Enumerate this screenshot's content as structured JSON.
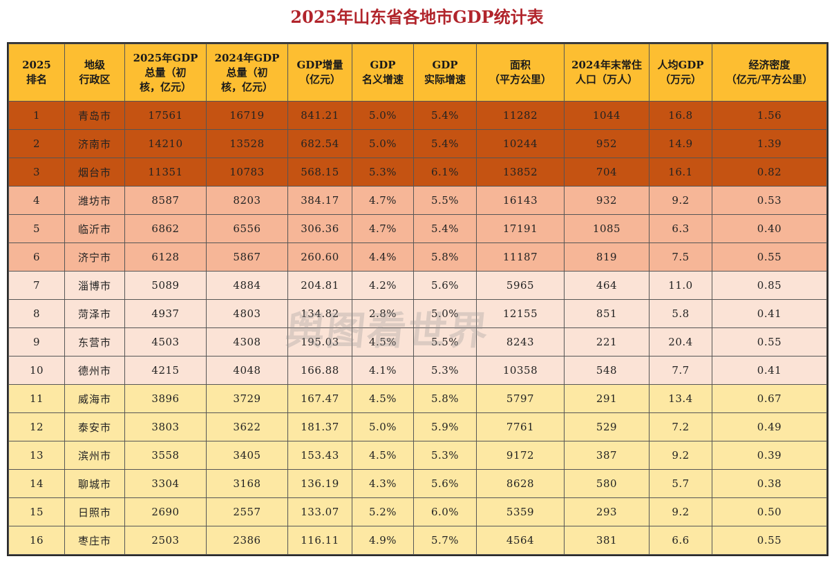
{
  "title": "2025年山东省各地市GDP统计表",
  "watermark": "舆图看世界",
  "headers": [
    [
      "2025",
      "排名"
    ],
    [
      "地级",
      "行政区"
    ],
    [
      "2025年GDP",
      "总量（初",
      "核，亿元）"
    ],
    [
      "2024年GDP",
      "总量（初",
      "核，亿元）"
    ],
    [
      "GDP增量",
      "（亿元）"
    ],
    [
      "GDP",
      "名义增速"
    ],
    [
      "GDP",
      "实际增速"
    ],
    [
      "面积",
      "（平方公里）"
    ],
    [
      "2024年末常住",
      "人口（万人）"
    ],
    [
      "人均GDP",
      "（万元）"
    ],
    [
      "经济密度",
      "（亿元/平方公里）"
    ]
  ],
  "tier_colors": [
    "#c55312",
    "#f6b697",
    "#fbe3d6",
    "#fde8a3"
  ],
  "rows": [
    {
      "tier": 1,
      "cells": [
        "1",
        "青岛市",
        "17561",
        "16719",
        "841.21",
        "5.0%",
        "5.4%",
        "11282",
        "1044",
        "16.8",
        "1.56"
      ]
    },
    {
      "tier": 1,
      "cells": [
        "2",
        "济南市",
        "14210",
        "13528",
        "682.54",
        "5.0%",
        "5.4%",
        "10244",
        "952",
        "14.9",
        "1.39"
      ]
    },
    {
      "tier": 1,
      "cells": [
        "3",
        "烟台市",
        "11351",
        "10783",
        "568.15",
        "5.3%",
        "6.1%",
        "13852",
        "704",
        "16.1",
        "0.82"
      ]
    },
    {
      "tier": 2,
      "cells": [
        "4",
        "潍坊市",
        "8587",
        "8203",
        "384.17",
        "4.7%",
        "5.5%",
        "16143",
        "932",
        "9.2",
        "0.53"
      ]
    },
    {
      "tier": 2,
      "cells": [
        "5",
        "临沂市",
        "6862",
        "6556",
        "306.36",
        "4.7%",
        "5.4%",
        "17191",
        "1085",
        "6.3",
        "0.40"
      ]
    },
    {
      "tier": 2,
      "cells": [
        "6",
        "济宁市",
        "6128",
        "5867",
        "260.60",
        "4.4%",
        "5.8%",
        "11187",
        "819",
        "7.5",
        "0.55"
      ]
    },
    {
      "tier": 3,
      "cells": [
        "7",
        "淄博市",
        "5089",
        "4884",
        "204.81",
        "4.2%",
        "5.6%",
        "5965",
        "464",
        "11.0",
        "0.85"
      ]
    },
    {
      "tier": 3,
      "cells": [
        "8",
        "菏泽市",
        "4937",
        "4803",
        "134.82",
        "2.8%",
        "5.0%",
        "12155",
        "851",
        "5.8",
        "0.41"
      ]
    },
    {
      "tier": 3,
      "cells": [
        "9",
        "东营市",
        "4503",
        "4308",
        "195.03",
        "4.5%",
        "5.5%",
        "8243",
        "221",
        "20.4",
        "0.55"
      ]
    },
    {
      "tier": 3,
      "cells": [
        "10",
        "德州市",
        "4215",
        "4048",
        "166.88",
        "4.1%",
        "5.3%",
        "10358",
        "548",
        "7.7",
        "0.41"
      ]
    },
    {
      "tier": 4,
      "cells": [
        "11",
        "威海市",
        "3896",
        "3729",
        "167.47",
        "4.5%",
        "5.8%",
        "5797",
        "291",
        "13.4",
        "0.67"
      ]
    },
    {
      "tier": 4,
      "cells": [
        "12",
        "泰安市",
        "3803",
        "3622",
        "181.37",
        "5.0%",
        "5.9%",
        "7761",
        "529",
        "7.2",
        "0.49"
      ]
    },
    {
      "tier": 4,
      "cells": [
        "13",
        "滨州市",
        "3558",
        "3405",
        "153.43",
        "4.5%",
        "5.3%",
        "9172",
        "387",
        "9.2",
        "0.39"
      ]
    },
    {
      "tier": 4,
      "cells": [
        "14",
        "聊城市",
        "3304",
        "3168",
        "136.19",
        "4.3%",
        "5.6%",
        "8628",
        "580",
        "5.7",
        "0.38"
      ]
    },
    {
      "tier": 4,
      "cells": [
        "15",
        "日照市",
        "2690",
        "2557",
        "133.07",
        "5.2%",
        "6.0%",
        "5359",
        "293",
        "9.2",
        "0.50"
      ]
    },
    {
      "tier": 4,
      "cells": [
        "16",
        "枣庄市",
        "2503",
        "2386",
        "116.11",
        "4.9%",
        "5.7%",
        "4564",
        "381",
        "6.6",
        "0.55"
      ]
    }
  ]
}
